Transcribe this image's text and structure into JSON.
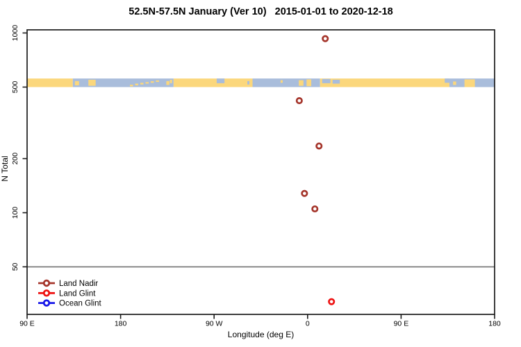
{
  "title": "52.5N-57.5N January (Ver 10)   2015-01-01 to 2020-12-18",
  "axes": {
    "x": {
      "label": "Longitude (deg E)",
      "range_deg_unwrapped": [
        90,
        540
      ],
      "ticks": [
        {
          "lon": 90,
          "label": "90 E"
        },
        {
          "lon": 180,
          "label": "180"
        },
        {
          "lon": 270,
          "label": "90 W"
        },
        {
          "lon": 360,
          "label": "0"
        },
        {
          "lon": 450,
          "label": "90 E"
        },
        {
          "lon": 540,
          "label": "180"
        }
      ]
    },
    "y": {
      "label": "N Total",
      "scale": "log10",
      "ticks": [
        "1000",
        "500",
        "200",
        "100",
        "50"
      ],
      "reference_line_at": 50
    }
  },
  "legend": {
    "items": [
      {
        "label": "Land Nadir",
        "color": "#A5352B"
      },
      {
        "label": "Land Glint",
        "color": "#EE1212"
      },
      {
        "label": "Ocean Glint",
        "color": "#1616E8"
      }
    ]
  },
  "colors": {
    "land": "#FBD77C",
    "ocean": "#A9BDDB",
    "gridline": "#7A7A7A",
    "axis": "#1A1A1A",
    "background": "#FFFFFF"
  },
  "chart_data": {
    "type": "scatter",
    "title": "52.5N-57.5N January (Ver 10)   2015-01-01 to 2020-12-18",
    "xlabel": "Longitude (deg E)",
    "ylabel": "N Total",
    "y_scale": "log10",
    "ylim": [
      27,
      1040
    ],
    "x_ticks_deg_unwrapped": [
      90,
      180,
      270,
      360,
      450,
      540
    ],
    "y_ticks": [
      1000,
      500,
      200,
      100,
      50
    ],
    "reference_line_n": 50,
    "series": [
      {
        "name": "Land Nadir",
        "color": "#A5352B",
        "points": [
          {
            "lon_deg_e": 17,
            "n": 930
          },
          {
            "lon_deg_e": -8,
            "n": 420
          },
          {
            "lon_deg_e": 11,
            "n": 235
          },
          {
            "lon_deg_e": -3,
            "n": 128
          },
          {
            "lon_deg_e": 7,
            "n": 105
          }
        ]
      },
      {
        "name": "Land Glint",
        "color": "#EE1212",
        "points": [
          {
            "lon_deg_e": 23,
            "n": 32
          }
        ]
      },
      {
        "name": "Ocean Glint",
        "color": "#1616E8",
        "points": []
      }
    ],
    "land_ocean_band": {
      "description": "land/ocean mask strip for latitude band 52.5N-57.5N, drawn at N 500-558",
      "n_range": [
        500,
        558
      ],
      "segments": [
        {
          "from": 90,
          "to": 134,
          "type": "land"
        },
        {
          "from": 134,
          "to": 231,
          "type": "ocean"
        },
        {
          "from": 231,
          "to": 307,
          "type": "land"
        },
        {
          "from": 307,
          "to": 372,
          "type": "ocean"
        },
        {
          "from": 372,
          "to": 496.5,
          "type": "land"
        },
        {
          "from": 496.5,
          "to": 540,
          "type": "ocean"
        }
      ],
      "patches": [
        {
          "from": 136,
          "to": 140,
          "type": "land",
          "y0": 0.3,
          "y1": 0.8
        },
        {
          "from": 149,
          "to": 156,
          "type": "land",
          "y0": 0.15,
          "y1": 0.85
        },
        {
          "from": 189,
          "to": 192,
          "type": "land",
          "y0": 0.72,
          "y1": 0.92
        },
        {
          "from": 194,
          "to": 197,
          "type": "land",
          "y0": 0.6,
          "y1": 0.8
        },
        {
          "from": 199,
          "to": 202,
          "type": "land",
          "y0": 0.5,
          "y1": 0.7
        },
        {
          "from": 204,
          "to": 207,
          "type": "land",
          "y0": 0.42,
          "y1": 0.6
        },
        {
          "from": 209,
          "to": 212,
          "type": "land",
          "y0": 0.32,
          "y1": 0.5
        },
        {
          "from": 214,
          "to": 217,
          "type": "land",
          "y0": 0.22,
          "y1": 0.4
        },
        {
          "from": 224,
          "to": 227,
          "type": "land",
          "y0": 0.3,
          "y1": 0.75
        },
        {
          "from": 227.5,
          "to": 229.5,
          "type": "land",
          "y0": 0.15,
          "y1": 0.55
        },
        {
          "from": 272.5,
          "to": 280,
          "type": "ocean",
          "y0": 0.0,
          "y1": 0.55
        },
        {
          "from": 302,
          "to": 304,
          "type": "ocean",
          "y0": 0.3,
          "y1": 0.7
        },
        {
          "from": 334,
          "to": 336,
          "type": "land",
          "y0": 0.2,
          "y1": 0.5
        },
        {
          "from": 351.5,
          "to": 356,
          "type": "land",
          "y0": 0.2,
          "y1": 0.85
        },
        {
          "from": 359,
          "to": 363.5,
          "type": "land",
          "y0": 0.1,
          "y1": 0.9
        },
        {
          "from": 374,
          "to": 382,
          "type": "ocean",
          "y0": 0.05,
          "y1": 0.55
        },
        {
          "from": 384,
          "to": 391,
          "type": "ocean",
          "y0": 0.15,
          "y1": 0.6
        },
        {
          "from": 492,
          "to": 496.5,
          "type": "ocean",
          "y0": 0.0,
          "y1": 0.5
        },
        {
          "from": 500,
          "to": 503,
          "type": "land",
          "y0": 0.35,
          "y1": 0.75
        },
        {
          "from": 511,
          "to": 521,
          "type": "land",
          "y0": 0.1,
          "y1": 1.0
        }
      ]
    }
  }
}
